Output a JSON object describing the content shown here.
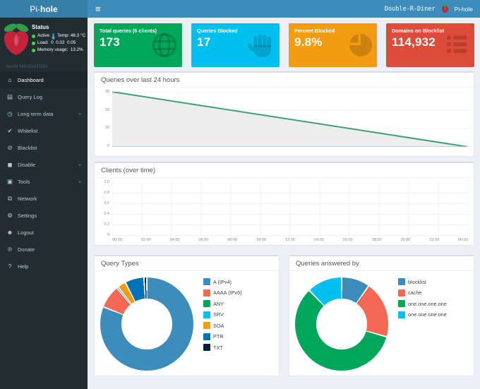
{
  "header": {
    "logo_light": "Pi-",
    "logo_bold": "hole",
    "menu_icon_glyph": "≡",
    "hostname": "Double-R-Diner",
    "user_label": "Pi-hole"
  },
  "sidebar": {
    "status": {
      "title": "Status",
      "active": "Active",
      "temp": "Temp: 46.3 °C",
      "load": "Load:  0  0.02  0.05",
      "memory": "Memory usage:  13.2%"
    },
    "nav_label": "MAIN NAVIGATION",
    "items": [
      {
        "label": "Dashboard",
        "icon": "⌂",
        "active": true
      },
      {
        "label": "Query Log",
        "icon": "▤"
      },
      {
        "label": "Long term data",
        "icon": "◷",
        "chevron": "›"
      },
      {
        "label": "Whitelist",
        "icon": "✔"
      },
      {
        "label": "Blacklist",
        "icon": "⊘"
      },
      {
        "label": "Disable",
        "icon": "◼",
        "chevron": "›"
      },
      {
        "label": "Tools",
        "icon": "▣",
        "chevron": "›"
      },
      {
        "label": "Network",
        "icon": "⧉"
      },
      {
        "label": "Settings",
        "icon": "⚙"
      },
      {
        "label": "Logout",
        "icon": "☻"
      },
      {
        "label": "Donate",
        "icon": "℗"
      },
      {
        "label": "Help",
        "icon": "?"
      }
    ]
  },
  "cards": [
    {
      "title": "Total queries (6 clients)",
      "value": "173",
      "color": "#00a65a",
      "icon": "globe-icon"
    },
    {
      "title": "Queries Blocked",
      "value": "17",
      "color": "#00c0ef",
      "icon": "hand-icon"
    },
    {
      "title": "Percent Blocked",
      "value": "9.8%",
      "color": "#f39c12",
      "icon": "pie-icon"
    },
    {
      "title": "Domains on Blocklist",
      "value": "114,932",
      "color": "#dd4b39",
      "icon": "list-icon"
    }
  ],
  "colors": {
    "header_blue": "#3c8dbc",
    "logo_blue": "#367fa9",
    "sidebar_dark": "#222d32",
    "page_bg": "#ecf0f5"
  },
  "chart_data": [
    {
      "type": "line",
      "title": "Queries over last 24 hours",
      "xlabel": "",
      "ylabel": "",
      "xlim": [
        0,
        24
      ],
      "ylim": [
        0,
        30
      ],
      "ytick_labels": [
        "30",
        "20",
        "10",
        "0"
      ],
      "grid_x": false,
      "legend_position": "none",
      "series": [
        {
          "name": "Total queries",
          "color": "#3da173",
          "fill": "#ededed",
          "width": 2,
          "x": [
            0,
            24
          ],
          "y": [
            30,
            0
          ]
        },
        {
          "name": "Blocked queries",
          "color": "#8ed3e3",
          "fill": "none",
          "width": 1.5,
          "x": [
            0,
            24
          ],
          "y": [
            0,
            0
          ]
        }
      ]
    },
    {
      "type": "line",
      "title": "Clients (over time)",
      "xlabel": "",
      "ylabel": "",
      "xlim": [
        0,
        24
      ],
      "ylim": [
        0,
        1
      ],
      "ytick_labels": [
        "1.0",
        "0.8",
        "0.6",
        "0.4",
        "0.2",
        "0"
      ],
      "xticks": [
        "00:00",
        "02:00",
        "04:00",
        "06:00",
        "08:00",
        "10:00",
        "12:00",
        "14:00",
        "16:00",
        "18:00",
        "20:00",
        "22:00",
        "00:00"
      ],
      "grid_x": true,
      "legend_position": "none",
      "series": []
    },
    {
      "type": "pie",
      "title": "Query Types",
      "legend_position": "right",
      "slices": [
        {
          "label": "A (IPv4)",
          "color": "#3c8dbc",
          "percent": 81.0
        },
        {
          "label": "AAAA (IPv6)",
          "color": "#f56954",
          "percent": 8.0
        },
        {
          "label": "ANY",
          "color": "#00a65a",
          "percent": 0.1
        },
        {
          "label": "SRV",
          "color": "#00c0ef",
          "percent": 0.4
        },
        {
          "label": "SOA",
          "color": "#f39c12",
          "percent": 2.9
        },
        {
          "label": "PTR",
          "color": "#0073b7",
          "percent": 6.6
        },
        {
          "label": "TXT",
          "color": "#001f3f",
          "percent": 1.0
        }
      ]
    },
    {
      "type": "pie",
      "title": "Queries answered by",
      "legend_position": "right",
      "slices": [
        {
          "label": "blocklist",
          "color": "#3c8dbc",
          "percent": 9.8
        },
        {
          "label": "cache",
          "color": "#f56954",
          "percent": 19.6
        },
        {
          "label": "one.one.one.one",
          "color": "#00a65a",
          "percent": 58.4
        },
        {
          "label": "one.one.one.one",
          "color": "#00c0ef",
          "percent": 12.2
        }
      ]
    }
  ]
}
